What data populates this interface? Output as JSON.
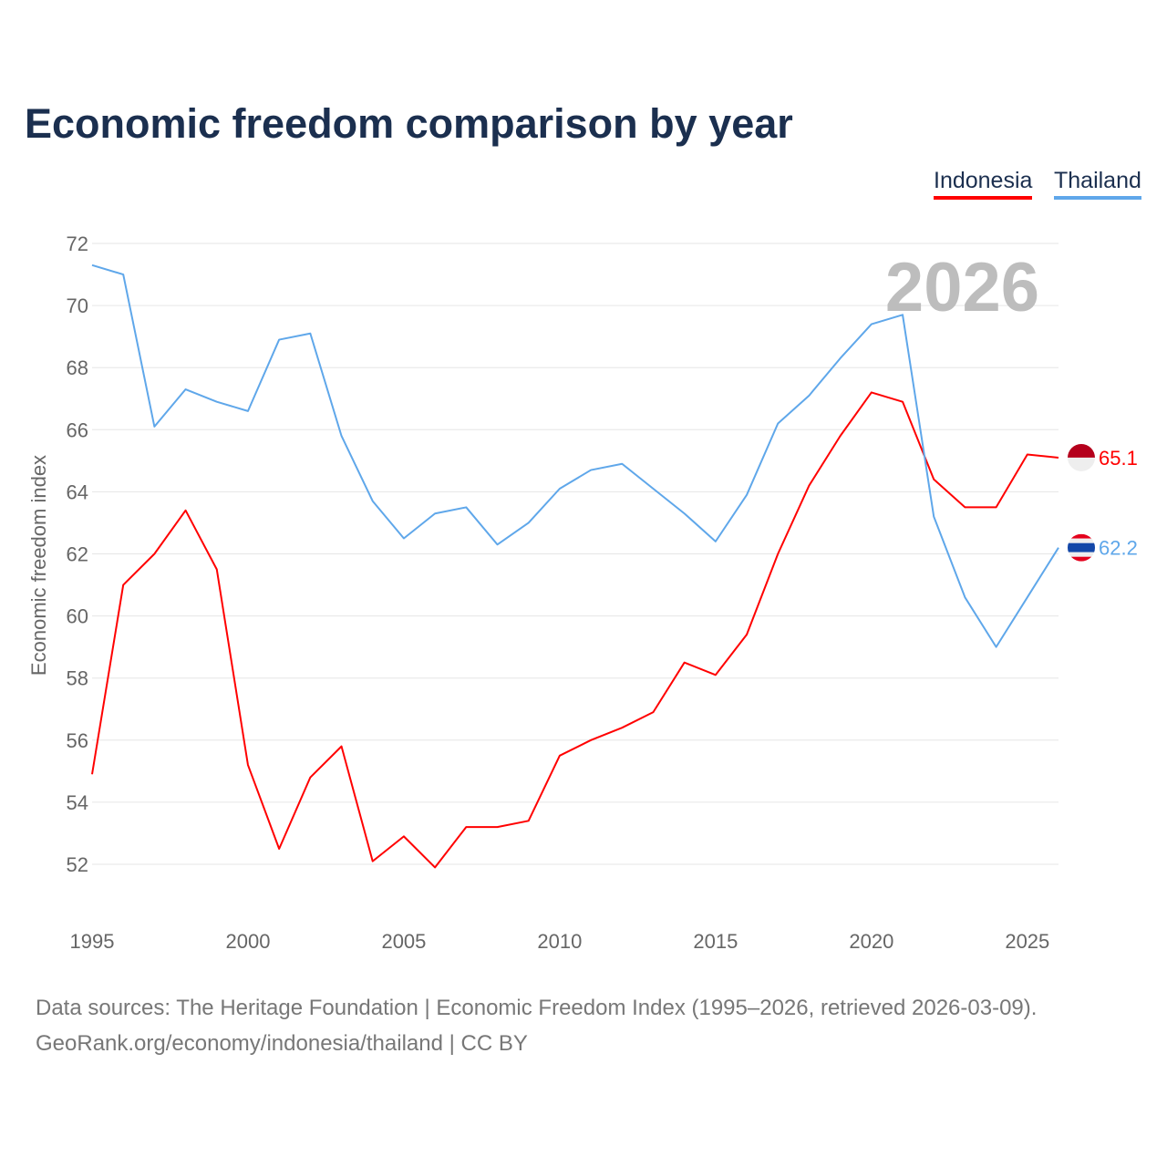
{
  "title": "Economic freedom comparison by year",
  "legend": [
    {
      "name": "Indonesia",
      "color": "#ff0000"
    },
    {
      "name": "Thailand",
      "color": "#5fa7ea"
    }
  ],
  "source_line1": "Data sources: The Heritage Foundation | Economic Freedom Index (1995–2026, retrieved 2026-03-09).",
  "source_line2": "GeoRank.org/economy/indonesia/thailand | CC BY",
  "chart_data": {
    "type": "line",
    "title": "Economic freedom comparison by year",
    "xlabel": "",
    "ylabel": "Economic freedom index",
    "year_watermark": "2026",
    "x": [
      1995,
      1996,
      1997,
      1998,
      1999,
      2000,
      2001,
      2002,
      2003,
      2004,
      2005,
      2006,
      2007,
      2008,
      2009,
      2010,
      2011,
      2012,
      2013,
      2014,
      2015,
      2016,
      2017,
      2018,
      2019,
      2020,
      2021,
      2022,
      2023,
      2024,
      2025,
      2026
    ],
    "xticks": [
      1995,
      2000,
      2005,
      2010,
      2015,
      2020,
      2025
    ],
    "yticks": [
      52,
      54,
      56,
      58,
      60,
      62,
      64,
      66,
      68,
      70,
      72
    ],
    "xlim": [
      1995,
      2026
    ],
    "ylim": [
      52,
      72
    ],
    "grid": true,
    "legend_position": "top-right",
    "series": [
      {
        "name": "Indonesia",
        "color": "#ff0000",
        "end_label": "65.1",
        "values": [
          54.9,
          61.0,
          62.0,
          63.4,
          61.5,
          55.2,
          52.5,
          54.8,
          55.8,
          52.1,
          52.9,
          51.9,
          53.2,
          53.2,
          53.4,
          55.5,
          56.0,
          56.4,
          56.9,
          58.5,
          58.1,
          59.4,
          62.0,
          64.2,
          65.8,
          67.2,
          66.9,
          64.4,
          63.5,
          63.5,
          65.2,
          65.1
        ]
      },
      {
        "name": "Thailand",
        "color": "#5fa7ea",
        "end_label": "62.2",
        "values": [
          71.3,
          71.0,
          66.1,
          67.3,
          66.9,
          66.6,
          68.9,
          69.1,
          65.8,
          63.7,
          62.5,
          63.3,
          63.5,
          62.3,
          63.0,
          64.1,
          64.7,
          64.9,
          64.1,
          63.3,
          62.4,
          63.9,
          66.2,
          67.1,
          68.3,
          69.4,
          69.7,
          63.2,
          60.6,
          59.0,
          60.6,
          62.2
        ]
      }
    ]
  }
}
